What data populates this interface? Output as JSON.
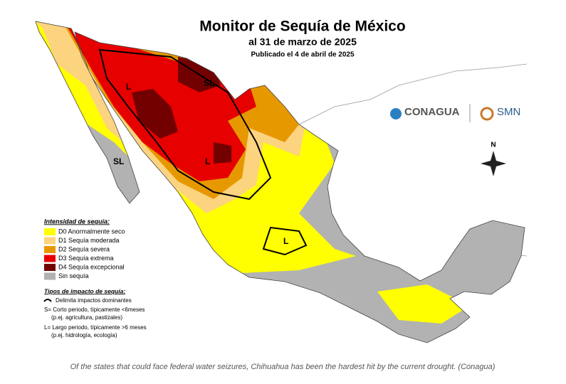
{
  "title": "Monitor de Sequía de México",
  "subtitle": "al 31 de marzo de 2025",
  "published": "Publicado el 4 de abril de 2025",
  "legend": {
    "title": "Intensidad de sequía:",
    "items": [
      {
        "label": "D0 Anormalmente seco",
        "color": "#ffff00"
      },
      {
        "label": "D1 Sequía moderada",
        "color": "#fcd37f"
      },
      {
        "label": "D2 Sequía severa",
        "color": "#e69800"
      },
      {
        "label": "D3 Sequía extrema",
        "color": "#e60000"
      },
      {
        "label": "D4 Sequía excepcional",
        "color": "#730000"
      },
      {
        "label": "Sin sequía",
        "color": "#b2b2b2"
      }
    ]
  },
  "impact": {
    "title": "Tipos de impacto de sequía:",
    "items": [
      "Delimita impactos dominantes",
      "S= Corto periodo, típicamente <6meses",
      "(p.ej. agricultura, pastizales)",
      "L= Largo periodo, típicamente >6 meses",
      "(p.ej. hidrología, ecología)"
    ]
  },
  "logos": [
    "CONAGUA",
    "SMN"
  ],
  "map_labels": [
    "L",
    "SL",
    "SL",
    "L",
    "L"
  ],
  "compass": "N",
  "caption": "Of the states that could face federal water seizures, Chihuahua has been the hardest hit by the current drought. (Conagua)"
}
